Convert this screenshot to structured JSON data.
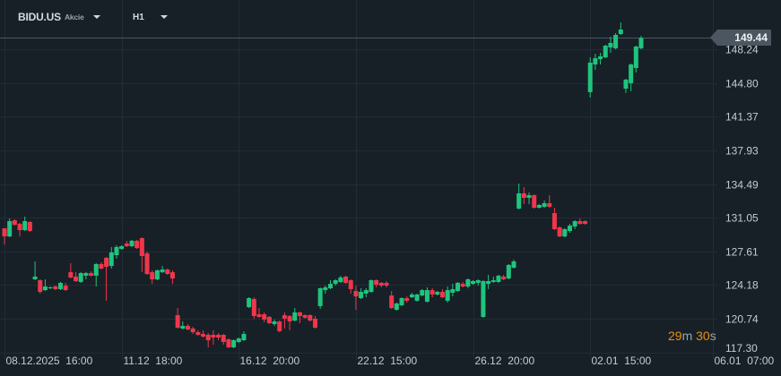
{
  "header": {
    "symbol": "BIDU.US",
    "instrument_type": "Akcie",
    "timeframe": "H1"
  },
  "countdown": {
    "minutes": "29",
    "m_unit": "m",
    "seconds": "30",
    "s_unit": "s"
  },
  "colors": {
    "background": "#172027",
    "grid": "#222c34",
    "up": "#1fc47d",
    "down": "#f0364b",
    "axis_text": "#c5cbd0",
    "price_line": "#4b5661",
    "countdown": "#e8900c"
  },
  "chart_data": {
    "type": "candlestick",
    "title": "",
    "current_price": "149.44",
    "ylim": [
      117.26,
      153.31
    ],
    "grid": true,
    "y_ticks": [
      "148.24",
      "144.80",
      "141.37",
      "137.93",
      "134.49",
      "131.05",
      "127.61",
      "124.18",
      "120.74",
      "117.30"
    ],
    "x_ticks": [
      {
        "index": 0,
        "label": "08.12.2025  16:00"
      },
      {
        "index": 23,
        "label": "11.12  18:00"
      },
      {
        "index": 46,
        "label": "16.12  20:00"
      },
      {
        "index": 69,
        "label": "22.12  15:00"
      },
      {
        "index": 92,
        "label": "26.12  20:00"
      },
      {
        "index": 115,
        "label": "02.01  15:00"
      },
      {
        "index": 139,
        "label": "06.01  07:00"
      }
    ],
    "ohlc": [
      [
        129.98,
        129.98,
        128.33,
        129.15
      ],
      [
        129.15,
        130.98,
        129.06,
        130.71
      ],
      [
        130.8,
        130.89,
        130.25,
        130.34
      ],
      [
        130.43,
        130.53,
        129.15,
        129.79
      ],
      [
        129.79,
        131.17,
        129.7,
        130.71
      ],
      [
        130.62,
        130.71,
        129.61,
        129.7
      ],
      [
        124.76,
        126.59,
        124.67,
        125.04
      ],
      [
        124.67,
        124.76,
        123.3,
        123.48
      ],
      [
        123.66,
        124.76,
        123.57,
        124.03
      ],
      [
        123.85,
        124.04,
        123.76,
        123.94
      ],
      [
        124.04,
        124.12,
        123.66,
        123.76
      ],
      [
        123.76,
        124.49,
        123.66,
        124.4
      ],
      [
        124.12,
        124.4,
        123.57,
        123.66
      ],
      [
        125.49,
        126.41,
        124.85,
        124.95
      ],
      [
        125.04,
        125.49,
        124.49,
        124.58
      ],
      [
        124.49,
        125.49,
        124.4,
        125.4
      ],
      [
        125.13,
        125.49,
        124.76,
        125.4
      ],
      [
        125.4,
        125.58,
        125.04,
        125.13
      ],
      [
        125.13,
        126.41,
        124.03,
        126.32
      ],
      [
        126.32,
        126.5,
        125.77,
        125.86
      ],
      [
        126.96,
        127.05,
        122.57,
        126.04
      ],
      [
        126.13,
        128.06,
        125.86,
        127.51
      ],
      [
        127.23,
        128.24,
        126.87,
        128.06
      ],
      [
        127.87,
        128.24,
        127.78,
        128.15
      ],
      [
        128.42,
        128.7,
        128.06,
        128.15
      ],
      [
        128.15,
        128.79,
        128.06,
        128.7
      ],
      [
        128.7,
        128.79,
        127.87,
        127.96
      ],
      [
        128.97,
        129.06,
        125.49,
        127.14
      ],
      [
        127.41,
        127.6,
        125.22,
        125.31
      ],
      [
        125.49,
        125.68,
        124.3,
        124.76
      ],
      [
        124.76,
        125.77,
        124.67,
        125.68
      ],
      [
        125.49,
        126.13,
        125.4,
        125.77
      ],
      [
        125.77,
        125.86,
        125.22,
        125.31
      ],
      [
        125.49,
        125.68,
        124.3,
        124.85
      ],
      [
        121.1,
        121.83,
        119.73,
        119.82
      ],
      [
        119.73,
        120.46,
        119.64,
        120.0
      ],
      [
        120.0,
        120.18,
        119.55,
        119.64
      ],
      [
        119.73,
        119.91,
        119.18,
        119.36
      ],
      [
        119.36,
        119.55,
        119.0,
        119.09
      ],
      [
        119.18,
        119.55,
        118.81,
        118.91
      ],
      [
        119.09,
        119.27,
        117.81,
        118.54
      ],
      [
        119.09,
        119.55,
        118.08,
        118.81
      ],
      [
        119.09,
        119.27,
        118.54,
        118.81
      ],
      [
        119.09,
        119.18,
        118.08,
        118.36
      ],
      [
        118.63,
        118.72,
        117.72,
        117.81
      ],
      [
        117.81,
        118.63,
        117.72,
        118.54
      ],
      [
        118.36,
        118.81,
        118.26,
        118.72
      ],
      [
        118.54,
        119.45,
        118.45,
        119.18
      ],
      [
        121.92,
        122.93,
        121.83,
        122.84
      ],
      [
        122.75,
        122.93,
        120.74,
        121.01
      ],
      [
        121.19,
        121.83,
        120.83,
        120.92
      ],
      [
        121.19,
        121.38,
        120.37,
        120.65
      ],
      [
        120.92,
        121.01,
        120.19,
        120.28
      ],
      [
        120.19,
        120.65,
        120.0,
        120.46
      ],
      [
        120.46,
        120.55,
        119.36,
        119.46
      ],
      [
        121.1,
        121.38,
        119.73,
        120.74
      ],
      [
        121.01,
        121.1,
        119.55,
        120.46
      ],
      [
        120.55,
        121.83,
        120.46,
        121.38
      ],
      [
        121.38,
        121.47,
        120.28,
        121.01
      ],
      [
        121.1,
        121.19,
        120.74,
        120.83
      ],
      [
        121.1,
        121.19,
        120.46,
        120.55
      ],
      [
        120.74,
        121.01,
        119.73,
        119.82
      ],
      [
        122.02,
        123.94,
        121.74,
        123.85
      ],
      [
        123.66,
        124.12,
        123.3,
        123.94
      ],
      [
        123.85,
        124.67,
        123.76,
        124.3
      ],
      [
        124.3,
        124.76,
        124.12,
        124.67
      ],
      [
        124.49,
        125.13,
        124.4,
        124.95
      ],
      [
        125.04,
        125.13,
        124.3,
        124.4
      ],
      [
        124.67,
        124.76,
        123.3,
        123.76
      ],
      [
        123.57,
        124.12,
        121.65,
        123.02
      ],
      [
        122.84,
        123.85,
        122.75,
        123.48
      ],
      [
        123.3,
        123.85,
        122.93,
        123.66
      ],
      [
        123.48,
        124.76,
        123.39,
        124.67
      ],
      [
        124.67,
        124.76,
        123.94,
        124.21
      ],
      [
        124.4,
        124.49,
        123.94,
        124.12
      ],
      [
        124.4,
        124.58,
        123.94,
        124.12
      ],
      [
        123.11,
        123.57,
        121.74,
        121.83
      ],
      [
        121.65,
        122.38,
        121.56,
        122.29
      ],
      [
        122.11,
        122.93,
        122.02,
        122.84
      ],
      [
        122.84,
        123.02,
        122.38,
        122.57
      ],
      [
        122.93,
        123.39,
        122.84,
        123.21
      ],
      [
        122.57,
        123.3,
        122.48,
        123.21
      ],
      [
        123.11,
        123.76,
        123.02,
        123.66
      ],
      [
        122.48,
        123.94,
        122.38,
        123.66
      ],
      [
        123.66,
        123.85,
        122.93,
        123.21
      ],
      [
        123.21,
        123.57,
        123.11,
        123.48
      ],
      [
        123.48,
        123.76,
        122.84,
        122.93
      ],
      [
        122.57,
        124.03,
        122.38,
        123.66
      ],
      [
        123.39,
        124.3,
        123.02,
        123.76
      ],
      [
        123.57,
        124.49,
        123.48,
        124.4
      ],
      [
        124.3,
        124.49,
        123.94,
        124.03
      ],
      [
        124.03,
        124.85,
        123.85,
        124.76
      ],
      [
        124.3,
        124.67,
        124.21,
        124.58
      ],
      [
        124.4,
        124.76,
        124.12,
        124.67
      ],
      [
        120.92,
        124.67,
        120.83,
        124.58
      ],
      [
        124.3,
        125.22,
        123.76,
        124.58
      ],
      [
        124.49,
        125.04,
        124.4,
        124.67
      ],
      [
        124.49,
        125.22,
        124.4,
        125.13
      ],
      [
        125.04,
        125.22,
        124.67,
        124.76
      ],
      [
        124.85,
        126.32,
        124.76,
        126.23
      ],
      [
        125.95,
        126.78,
        125.86,
        126.59
      ],
      [
        131.99,
        134.55,
        131.9,
        133.55
      ],
      [
        133.55,
        134.19,
        132.45,
        133.09
      ],
      [
        133.09,
        133.64,
        132.45,
        133.36
      ],
      [
        133.36,
        133.45,
        131.99,
        132.08
      ],
      [
        132.08,
        132.45,
        131.99,
        132.36
      ],
      [
        132.17,
        132.82,
        132.08,
        132.54
      ],
      [
        132.54,
        133.36,
        132.08,
        132.17
      ],
      [
        131.53,
        132.08,
        129.79,
        129.89
      ],
      [
        130.07,
        130.16,
        129.06,
        129.15
      ],
      [
        129.15,
        129.98,
        129.06,
        129.89
      ],
      [
        129.7,
        130.43,
        129.52,
        130.25
      ],
      [
        130.16,
        130.8,
        129.89,
        130.71
      ],
      [
        130.71,
        130.98,
        130.34,
        130.43
      ],
      [
        130.71,
        130.8,
        130.34,
        130.43
      ],
      [
        143.89,
        147.45,
        143.34,
        146.91
      ],
      [
        146.72,
        147.82,
        146.17,
        147.36
      ],
      [
        147.27,
        147.91,
        146.72,
        147.55
      ],
      [
        147.45,
        148.73,
        147.36,
        148.64
      ],
      [
        148.46,
        149.56,
        147.91,
        148.92
      ],
      [
        148.37,
        149.92,
        148.28,
        149.74
      ],
      [
        149.83,
        151.02,
        149.74,
        150.29
      ],
      [
        144.25,
        145.26,
        143.8,
        145.17
      ],
      [
        144.8,
        146.81,
        143.98,
        146.72
      ],
      [
        146.36,
        148.64,
        145.9,
        148.55
      ],
      [
        148.37,
        149.65,
        148.28,
        149.44
      ]
    ]
  }
}
